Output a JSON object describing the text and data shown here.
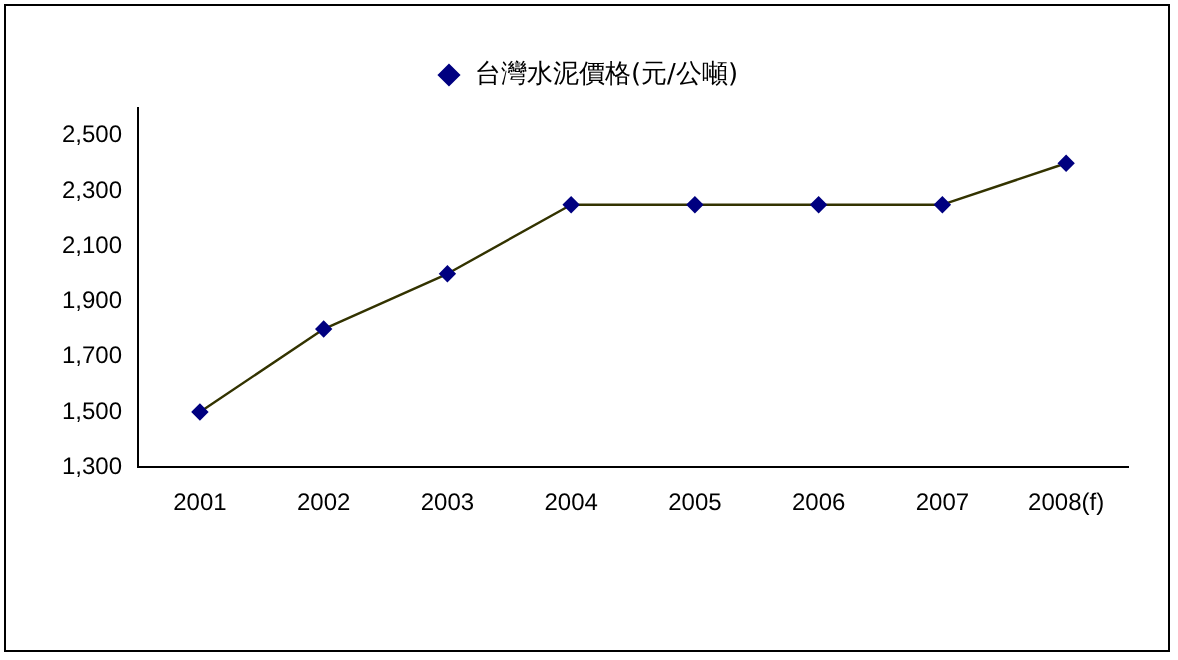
{
  "chart_data": {
    "type": "line",
    "categories": [
      "2001",
      "2002",
      "2003",
      "2004",
      "2005",
      "2006",
      "2007",
      "2008(f)"
    ],
    "series": [
      {
        "name": "台灣水泥價格(元/公噸)",
        "color": "#000080",
        "values": [
          1500,
          1800,
          2000,
          2250,
          2250,
          2250,
          2250,
          2400
        ]
      }
    ],
    "ylim": [
      1300,
      2600
    ],
    "yticks": [
      {
        "value": 1300,
        "label": "1,300"
      },
      {
        "value": 1500,
        "label": "1,500"
      },
      {
        "value": 1700,
        "label": "1,700"
      },
      {
        "value": 1900,
        "label": "1,900"
      },
      {
        "value": 2100,
        "label": "2,100"
      },
      {
        "value": 2300,
        "label": "2,300"
      },
      {
        "value": 2500,
        "label": "2,500"
      }
    ],
    "grid": false,
    "legend": "top",
    "marker": "diamond",
    "line_style": "solid"
  }
}
